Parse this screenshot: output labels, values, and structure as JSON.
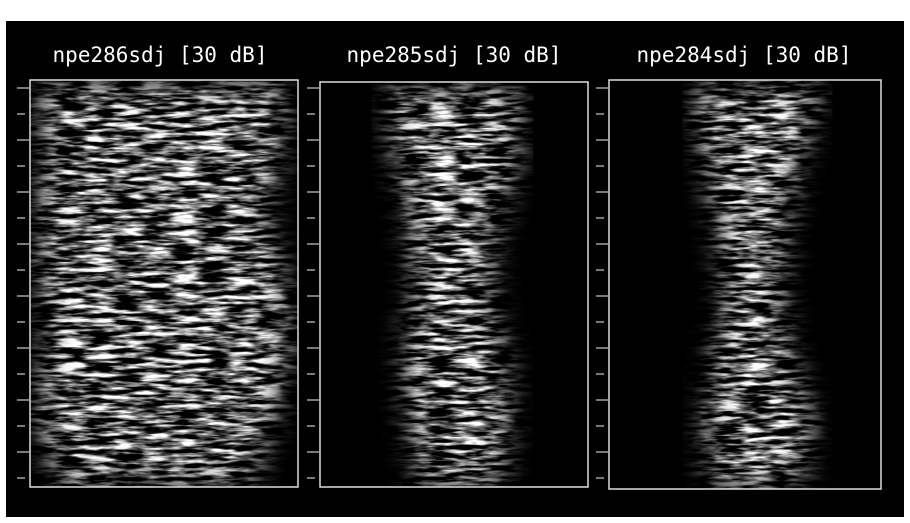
{
  "panels": [
    {
      "title": "npe286sdj [30 dB]"
    },
    {
      "title": "npe285sdj [30 dB]"
    },
    {
      "title": "npe284sdj [30 dB]"
    }
  ]
}
